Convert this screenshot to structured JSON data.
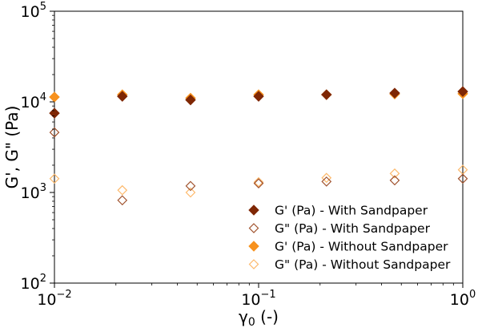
{
  "chart_data": {
    "type": "scatter",
    "xscale": "log",
    "yscale": "log",
    "xlim": [
      0.01,
      1
    ],
    "ylim": [
      100,
      100000
    ],
    "xlabel_main": "γ",
    "xlabel_sub": "0",
    "xlabel_tail": " (-)",
    "ylabel": "G', G\" (Pa)",
    "xticks": [
      {
        "value": 0.01,
        "base": "10",
        "exp": "−2"
      },
      {
        "value": 0.1,
        "base": "10",
        "exp": "−1"
      },
      {
        "value": 1,
        "base": "10",
        "exp": "0"
      }
    ],
    "yticks": [
      {
        "value": 100,
        "base": "10",
        "exp": "2"
      },
      {
        "value": 1000,
        "base": "10",
        "exp": "3"
      },
      {
        "value": 10000,
        "base": "10",
        "exp": "4"
      },
      {
        "value": 100000,
        "base": "10",
        "exp": "5"
      }
    ],
    "x": [
      0.01,
      0.0215,
      0.0464,
      0.1,
      0.215,
      0.464,
      1
    ],
    "series": [
      {
        "name": "G' (Pa) - With Sandpaper",
        "color": "#7f2704",
        "filled": true,
        "values": [
          7500,
          11500,
          10500,
          11500,
          12000,
          12500,
          13000
        ]
      },
      {
        "name": "G\" (Pa) - With Sandpaper",
        "color": "#a0522d",
        "filled": false,
        "values": [
          4600,
          820,
          1180,
          1260,
          1320,
          1360,
          1420
        ]
      },
      {
        "name": "G' (Pa) - Without Sandpaper",
        "color": "#f7921e",
        "filled": true,
        "values": [
          11300,
          12000,
          11000,
          12000,
          12000,
          12200,
          12300
        ]
      },
      {
        "name": "G\" (Pa) - Without Sandpaper",
        "color": "#fdb96b",
        "filled": false,
        "values": [
          1420,
          1060,
          1000,
          1300,
          1450,
          1620,
          1780
        ]
      }
    ],
    "legend_position": "lower-right"
  }
}
